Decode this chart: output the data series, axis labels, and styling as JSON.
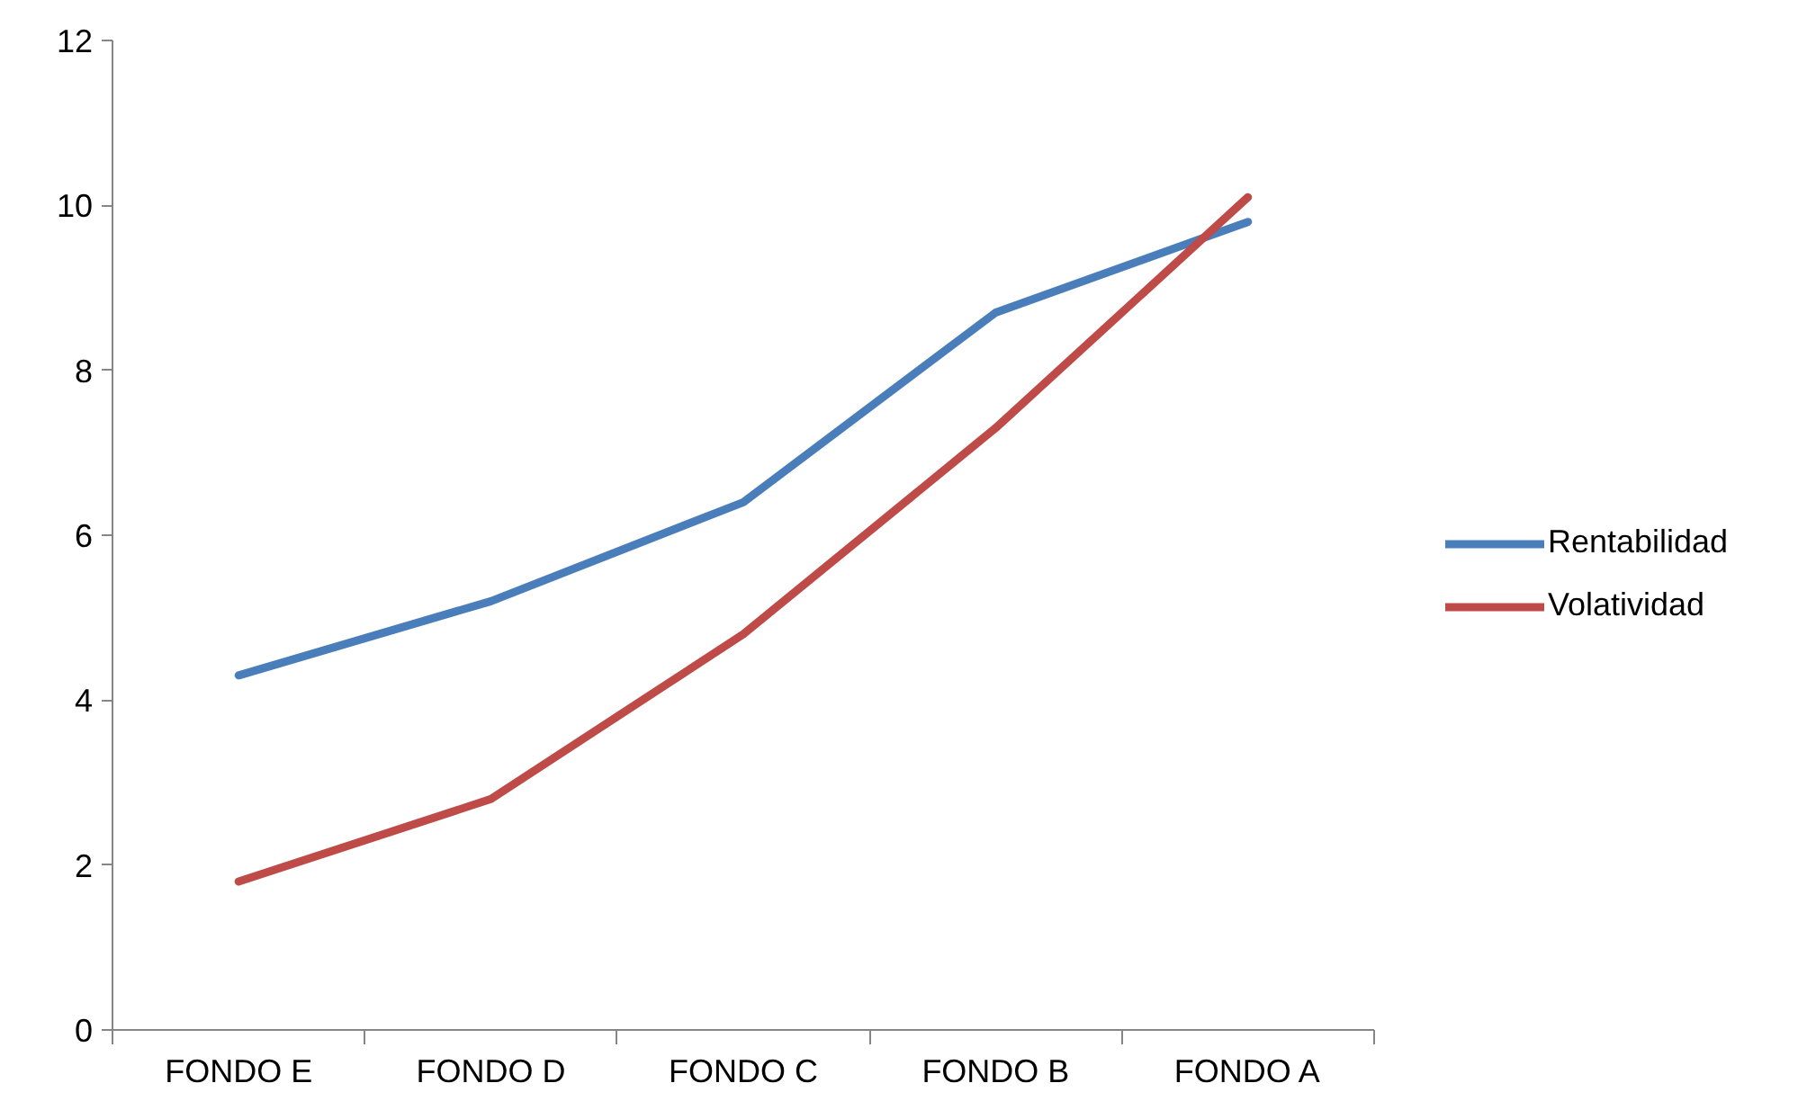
{
  "chart_data": {
    "type": "line",
    "categories": [
      "FONDO E",
      "FONDO D",
      "FONDO C",
      "FONDO B",
      "FONDO A"
    ],
    "series": [
      {
        "name": "Rentabilidad",
        "color": "#4a7ebb",
        "values": [
          4.3,
          5.2,
          6.4,
          8.7,
          9.8
        ]
      },
      {
        "name": "Volatividad",
        "color": "#be4b48",
        "values": [
          1.8,
          2.8,
          4.8,
          7.3,
          10.1
        ]
      }
    ],
    "ylim": [
      0,
      12
    ],
    "yticks": [
      0,
      2,
      4,
      6,
      8,
      10,
      12
    ],
    "grid": false,
    "legend": "right",
    "marker": "none",
    "line_style": "solid"
  }
}
